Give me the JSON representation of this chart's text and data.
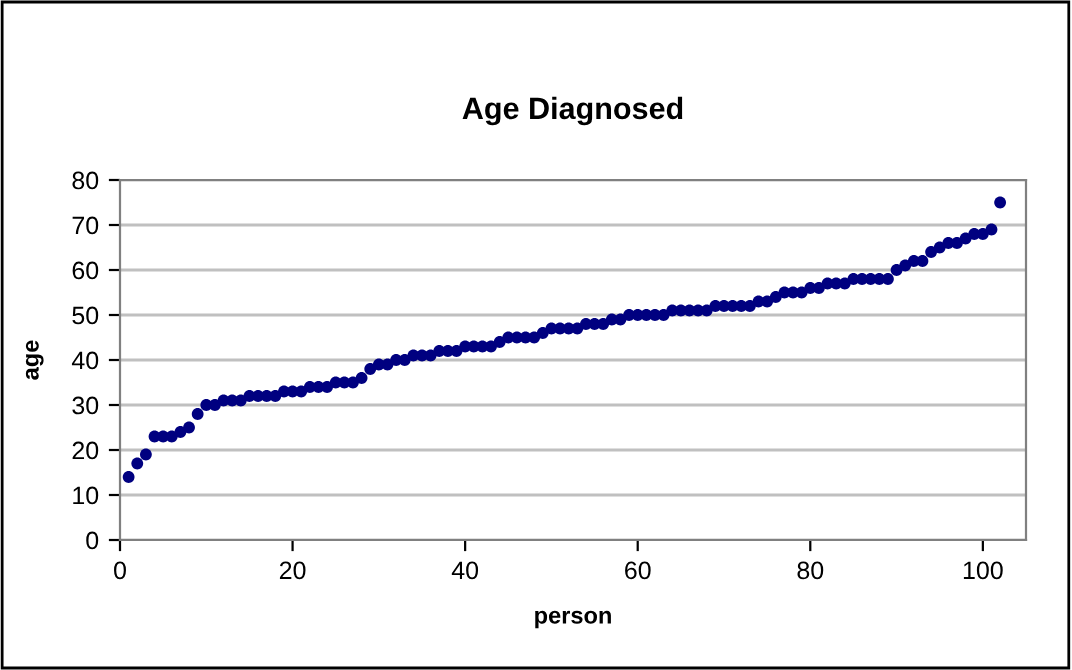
{
  "chart_data": {
    "type": "scatter",
    "title": "Age Diagnosed",
    "xlabel": "person",
    "ylabel": "age",
    "x": [
      1,
      2,
      3,
      4,
      5,
      6,
      7,
      8,
      9,
      10,
      11,
      12,
      13,
      14,
      15,
      16,
      17,
      18,
      19,
      20,
      21,
      22,
      23,
      24,
      25,
      26,
      27,
      28,
      29,
      30,
      31,
      32,
      33,
      34,
      35,
      36,
      37,
      38,
      39,
      40,
      41,
      42,
      43,
      44,
      45,
      46,
      47,
      48,
      49,
      50,
      51,
      52,
      53,
      54,
      55,
      56,
      57,
      58,
      59,
      60,
      61,
      62,
      63,
      64,
      65,
      66,
      67,
      68,
      69,
      70,
      71,
      72,
      73,
      74,
      75,
      76,
      77,
      78,
      79,
      80,
      81,
      82,
      83,
      84,
      85,
      86,
      87,
      88,
      89,
      90,
      91,
      92,
      93,
      94,
      95,
      96,
      97,
      98,
      99,
      100,
      101,
      102
    ],
    "values": [
      14,
      17,
      19,
      23,
      23,
      23,
      24,
      25,
      28,
      30,
      30,
      31,
      31,
      31,
      32,
      32,
      32,
      32,
      33,
      33,
      33,
      34,
      34,
      34,
      35,
      35,
      35,
      36,
      38,
      39,
      39,
      40,
      40,
      41,
      41,
      41,
      42,
      42,
      42,
      43,
      43,
      43,
      43,
      44,
      45,
      45,
      45,
      45,
      46,
      47,
      47,
      47,
      47,
      48,
      48,
      48,
      49,
      49,
      50,
      50,
      50,
      50,
      50,
      51,
      51,
      51,
      51,
      51,
      52,
      52,
      52,
      52,
      52,
      53,
      53,
      54,
      55,
      55,
      55,
      56,
      56,
      57,
      57,
      57,
      58,
      58,
      58,
      58,
      58,
      60,
      61,
      62,
      62,
      64,
      65,
      66,
      66,
      67,
      68,
      68,
      69,
      75
    ],
    "color": "#000080",
    "marker": "circle",
    "xlim": [
      0,
      105
    ],
    "xticks": [
      0,
      20,
      40,
      60,
      80,
      100
    ],
    "ylim": [
      0,
      80
    ],
    "yticks": [
      0,
      10,
      20,
      30,
      40,
      50,
      60,
      70,
      80
    ],
    "grid": "y",
    "legend": false
  }
}
